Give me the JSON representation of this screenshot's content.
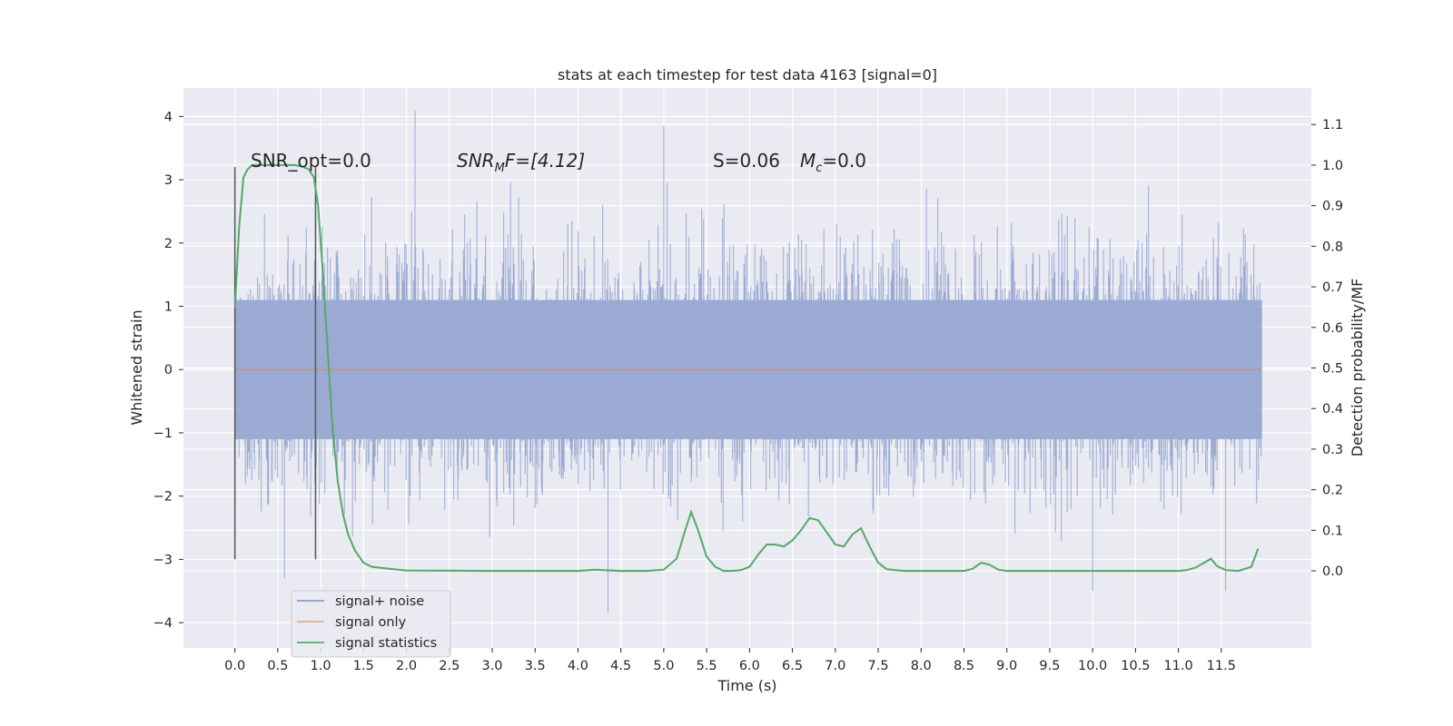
{
  "chart_data": {
    "type": "line",
    "title": "stats at each timestep for test data 4163 [signal=0]",
    "xlabel": "Time (s)",
    "ylabel_left": "Whitened strain",
    "ylabel_right": "Detection probability/MF",
    "xlim": [
      -0.6,
      12.55
    ],
    "ylim_left": [
      -4.4,
      4.45
    ],
    "ylim_right": [
      -0.19,
      1.19
    ],
    "x_ticks": [
      "0.0",
      "0.5",
      "1.0",
      "1.5",
      "2.0",
      "2.5",
      "3.0",
      "3.5",
      "4.0",
      "4.5",
      "5.0",
      "5.5",
      "6.0",
      "6.5",
      "7.0",
      "7.5",
      "8.0",
      "8.5",
      "9.0",
      "9.5",
      "10.0",
      "10.5",
      "11.0",
      "11.5"
    ],
    "y_ticks_left": [
      "4",
      "3",
      "2",
      "1",
      "0",
      "−1",
      "−2",
      "−3",
      "−4"
    ],
    "y_ticks_right": [
      "1.1",
      "1.0",
      "0.9",
      "0.8",
      "0.7",
      "0.6",
      "0.5",
      "0.4",
      "0.3",
      "0.2",
      "0.1",
      "0.0"
    ],
    "grid": true,
    "legend": {
      "position": "lower-left",
      "entries": [
        "signal+ noise",
        "signal only",
        "signal statistics"
      ]
    },
    "annotations": {
      "snr_opt": "SNR_opt=0.0",
      "snr_mf_base": "SNR",
      "snr_mf_sub": "M",
      "snr_mf_rest": "F=[4.12]",
      "s_stat": "S=0.06",
      "mc_base": "M",
      "mc_sub": "c",
      "mc_rest": "=0.0"
    },
    "markers": {
      "vertical_lines_x": [
        0.0,
        0.94
      ]
    },
    "series": [
      {
        "name": "signal+ noise",
        "axis": "left",
        "color": "#8c9fcc",
        "x_range": [
          0.0,
          11.97
        ],
        "typical_envelope": [
          -2.6,
          2.6
        ],
        "peaks": [
          [
            2.1,
            4.1
          ],
          [
            5.0,
            3.85
          ],
          [
            4.35,
            -3.85
          ],
          [
            10.0,
            -3.5
          ],
          [
            11.55,
            -3.5
          ]
        ]
      },
      {
        "name": "signal only",
        "axis": "left",
        "color": "#dd8452",
        "x": [
          0.0,
          11.97
        ],
        "y": [
          0.0,
          0.0
        ]
      },
      {
        "name": "signal statistics",
        "axis": "right",
        "color": "#55a868",
        "x": [
          0.0,
          0.05,
          0.1,
          0.15,
          0.2,
          0.3,
          0.5,
          0.7,
          0.8,
          0.86,
          0.92,
          0.97,
          1.02,
          1.08,
          1.14,
          1.2,
          1.26,
          1.32,
          1.4,
          1.5,
          1.6,
          1.8,
          2.0,
          3.0,
          4.0,
          4.2,
          4.5,
          4.8,
          5.0,
          5.15,
          5.25,
          5.32,
          5.4,
          5.5,
          5.6,
          5.7,
          5.8,
          5.9,
          6.0,
          6.1,
          6.2,
          6.3,
          6.4,
          6.5,
          6.6,
          6.7,
          6.8,
          6.9,
          7.0,
          7.1,
          7.2,
          7.3,
          7.4,
          7.5,
          7.6,
          7.8,
          8.0,
          8.5,
          8.6,
          8.7,
          8.8,
          8.9,
          9.0,
          9.5,
          10.0,
          11.0,
          11.1,
          11.2,
          11.3,
          11.38,
          11.45,
          11.55,
          11.7,
          11.85,
          11.93
        ],
        "y": [
          0.65,
          0.85,
          0.97,
          0.99,
          1.0,
          1.0,
          1.0,
          1.0,
          0.995,
          0.99,
          0.97,
          0.9,
          0.75,
          0.55,
          0.35,
          0.22,
          0.14,
          0.09,
          0.05,
          0.02,
          0.01,
          0.005,
          0.001,
          0.0,
          0.0,
          0.003,
          0.0,
          0.0,
          0.003,
          0.03,
          0.1,
          0.145,
          0.1,
          0.035,
          0.01,
          0.0,
          0.0,
          0.002,
          0.01,
          0.04,
          0.065,
          0.065,
          0.06,
          0.075,
          0.1,
          0.13,
          0.125,
          0.095,
          0.065,
          0.06,
          0.09,
          0.105,
          0.06,
          0.02,
          0.004,
          0.0,
          0.0,
          0.0,
          0.005,
          0.02,
          0.015,
          0.003,
          0.0,
          0.0,
          0.0,
          0.0,
          0.002,
          0.008,
          0.02,
          0.03,
          0.012,
          0.002,
          0.0,
          0.01,
          0.055
        ]
      }
    ]
  }
}
